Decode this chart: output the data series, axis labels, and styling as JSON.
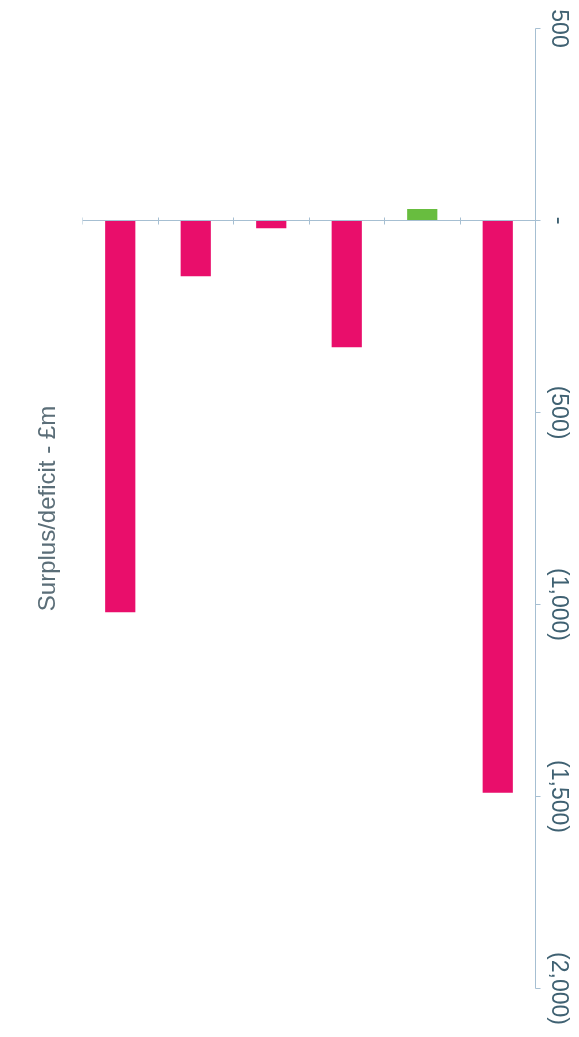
{
  "chart_data": {
    "type": "bar",
    "title": "Surplus/deficit - £m",
    "categories": [
      null,
      null,
      null,
      null,
      null,
      null
    ],
    "values": [
      -1020,
      -145,
      -20,
      -330,
      30,
      -1490
    ],
    "colors": [
      "#e90e6b",
      "#e90e6b",
      "#e90e6b",
      "#e90e6b",
      "#68bd3f",
      "#e90e6b"
    ],
    "ylim": [
      -2000,
      500
    ],
    "yticks": [
      {
        "value": -2000,
        "label": "(2,000)"
      },
      {
        "value": -1500,
        "label": "(1,500)"
      },
      {
        "value": -1000,
        "label": "(1,000)"
      },
      {
        "value": -500,
        "label": "(500)"
      },
      {
        "value": 0,
        "label": "-"
      },
      500
    ],
    "ref_lines": [
      {
        "axis": "y",
        "value": 0,
        "color": "#a6bfd2"
      }
    ]
  }
}
